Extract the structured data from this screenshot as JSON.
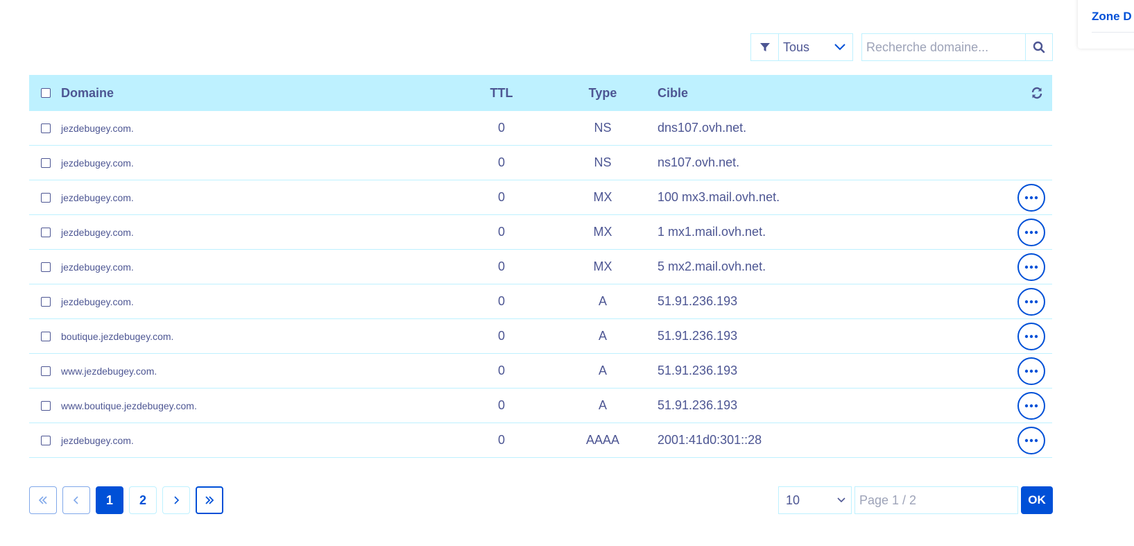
{
  "side_card": {
    "title": "Zone D"
  },
  "filter": {
    "selected": "Tous",
    "search_placeholder": "Recherche domaine..."
  },
  "table": {
    "headers": {
      "domain": "Domaine",
      "ttl": "TTL",
      "type": "Type",
      "target": "Cible"
    },
    "rows": [
      {
        "domain": "jezdebugey.com.",
        "ttl": "0",
        "type": "NS",
        "target": "dns107.ovh.net.",
        "actions": false
      },
      {
        "domain": "jezdebugey.com.",
        "ttl": "0",
        "type": "NS",
        "target": "ns107.ovh.net.",
        "actions": false
      },
      {
        "domain": "jezdebugey.com.",
        "ttl": "0",
        "type": "MX",
        "target": "100 mx3.mail.ovh.net.",
        "actions": true
      },
      {
        "domain": "jezdebugey.com.",
        "ttl": "0",
        "type": "MX",
        "target": "1 mx1.mail.ovh.net.",
        "actions": true
      },
      {
        "domain": "jezdebugey.com.",
        "ttl": "0",
        "type": "MX",
        "target": "5 mx2.mail.ovh.net.",
        "actions": true
      },
      {
        "domain": "jezdebugey.com.",
        "ttl": "0",
        "type": "A",
        "target": "51.91.236.193",
        "actions": true
      },
      {
        "domain": "boutique.jezdebugey.com.",
        "ttl": "0",
        "type": "A",
        "target": "51.91.236.193",
        "actions": true
      },
      {
        "domain": "www.jezdebugey.com.",
        "ttl": "0",
        "type": "A",
        "target": "51.91.236.193",
        "actions": true
      },
      {
        "domain": "www.boutique.jezdebugey.com.",
        "ttl": "0",
        "type": "A",
        "target": "51.91.236.193",
        "actions": true
      },
      {
        "domain": "jezdebugey.com.",
        "ttl": "0",
        "type": "AAAA",
        "target": "2001:41d0:301::28",
        "actions": true
      }
    ]
  },
  "pagination": {
    "first": "«",
    "prev": "‹",
    "pages": [
      "1",
      "2"
    ],
    "current_page": "1",
    "next": "›",
    "last": "»",
    "per_page": "10",
    "page_placeholder": "Page 1 / 2",
    "ok_label": "OK"
  },
  "colors": {
    "accent": "#0050d7",
    "header_bg": "#bef1ff",
    "text": "#4d5693"
  }
}
